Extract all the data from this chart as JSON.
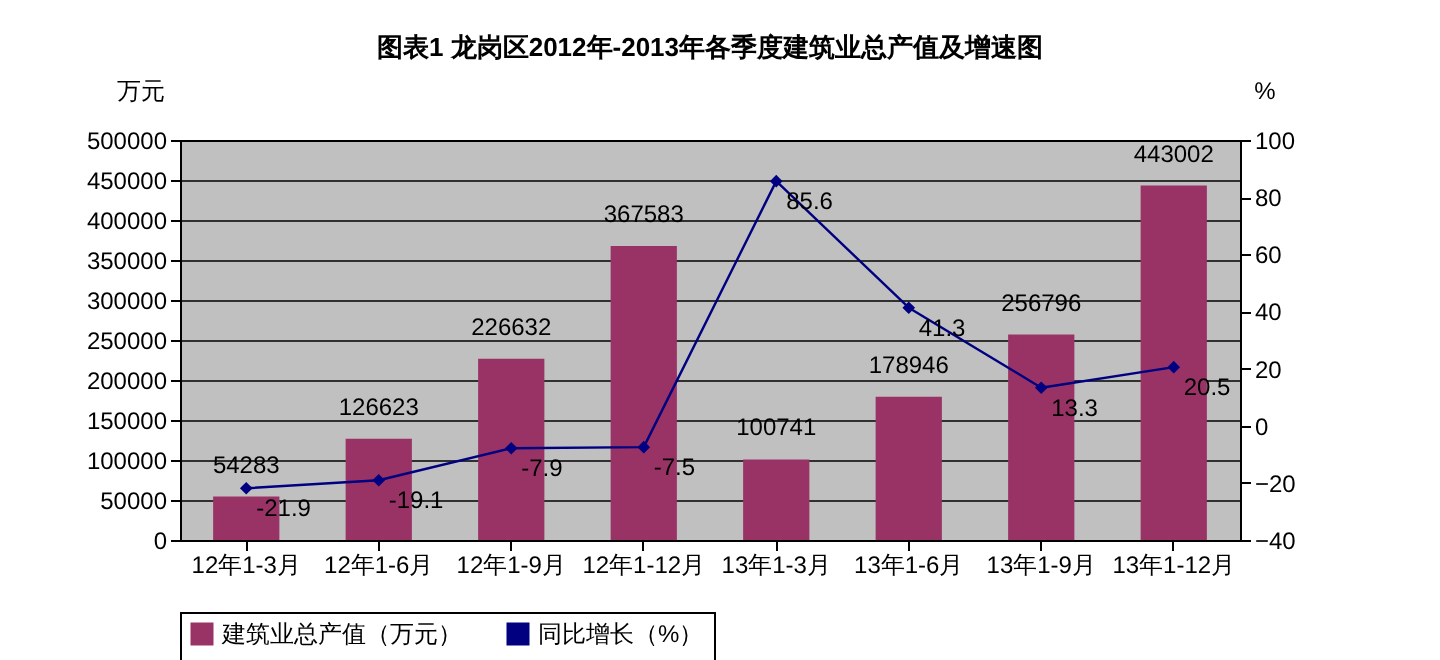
{
  "chart_data": {
    "type": "bar",
    "title": "图表1 龙岗区2012年-2013年各季度建筑业总产值及增速图",
    "ylabel": "万元",
    "y2label": "%",
    "categories": [
      "12年1-3月",
      "12年1-6月",
      "12年1-9月",
      "12年1-12月",
      "13年1-3月",
      "13年1-6月",
      "13年1-9月",
      "13年1-12月"
    ],
    "series": [
      {
        "name": "建筑业总产值（万元）",
        "color": "#993366",
        "values": [
          54283,
          126623,
          226632,
          367583,
          100741,
          178946,
          256796,
          443002
        ]
      },
      {
        "name": "同比增长（%）",
        "type": "line",
        "axis": "y2",
        "color": "#000080",
        "values": [
          -21.9,
          -19.1,
          -7.9,
          -7.5,
          85.6,
          41.3,
          13.3,
          20.5
        ]
      }
    ],
    "ylim": [
      0,
      500000
    ],
    "yticks": [
      0,
      50000,
      100000,
      150000,
      200000,
      250000,
      300000,
      350000,
      400000,
      450000,
      500000
    ],
    "y2lim": [
      -40,
      100
    ],
    "y2ticks": [
      -40,
      -20,
      0,
      20,
      40,
      60,
      80,
      100
    ],
    "grid": "y",
    "legend": "bottom",
    "marker": "diamond",
    "line_style": "solid",
    "data_labels": true
  }
}
